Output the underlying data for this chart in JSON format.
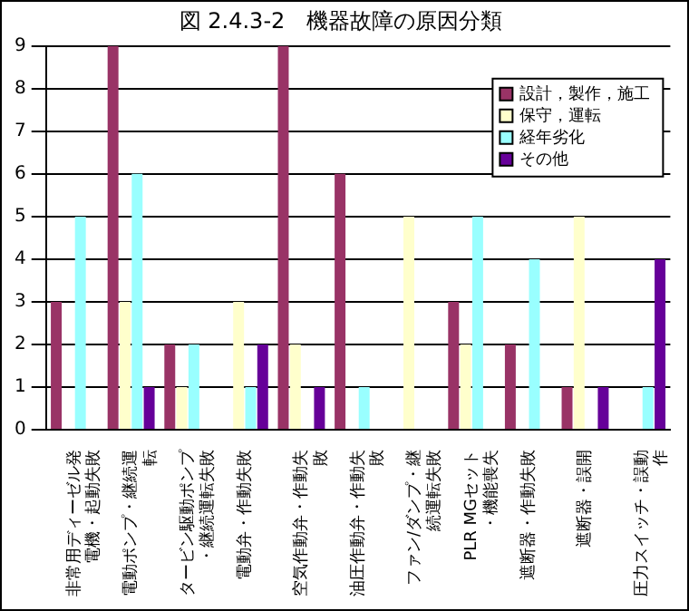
{
  "chart_data": {
    "type": "bar",
    "title": "図 2.4.3-2　機器故障の原因分類",
    "categories": [
      "非常用ディーゼル発電機・起動失敗",
      "電動ポンプ・継続運転",
      "タービン駆動ポンプ・継続運転失敗",
      "電動弁・作動失敗",
      "空気作動弁・作動失敗",
      "油圧作動弁・作動失敗",
      "ファン/ダンプ・継続運転失敗",
      "PLR MGセット・機能喪失",
      "遮断器・作動失敗",
      "遮断器・誤開",
      "圧力スイッチ・誤動作"
    ],
    "series": [
      {
        "name": "設計，製作，施工",
        "color": "#993366",
        "values": [
          3,
          9,
          2,
          0,
          9,
          6,
          0,
          3,
          2,
          1,
          0
        ]
      },
      {
        "name": "保守，運転",
        "color": "#ffffcc",
        "values": [
          0,
          3,
          1,
          3,
          2,
          0,
          5,
          2,
          0,
          5,
          0
        ]
      },
      {
        "name": "経年劣化",
        "color": "#99ffff",
        "values": [
          5,
          6,
          2,
          1,
          0,
          1,
          0,
          5,
          4,
          0,
          1
        ]
      },
      {
        "name": "その他",
        "color": "#660099",
        "values": [
          0,
          1,
          0,
          2,
          1,
          0,
          0,
          0,
          0,
          1,
          4
        ]
      }
    ],
    "ylim": [
      0,
      9
    ],
    "yticks": [
      0,
      1,
      2,
      3,
      4,
      5,
      6,
      7,
      8,
      9
    ],
    "grid": "y",
    "legend": "top right"
  }
}
